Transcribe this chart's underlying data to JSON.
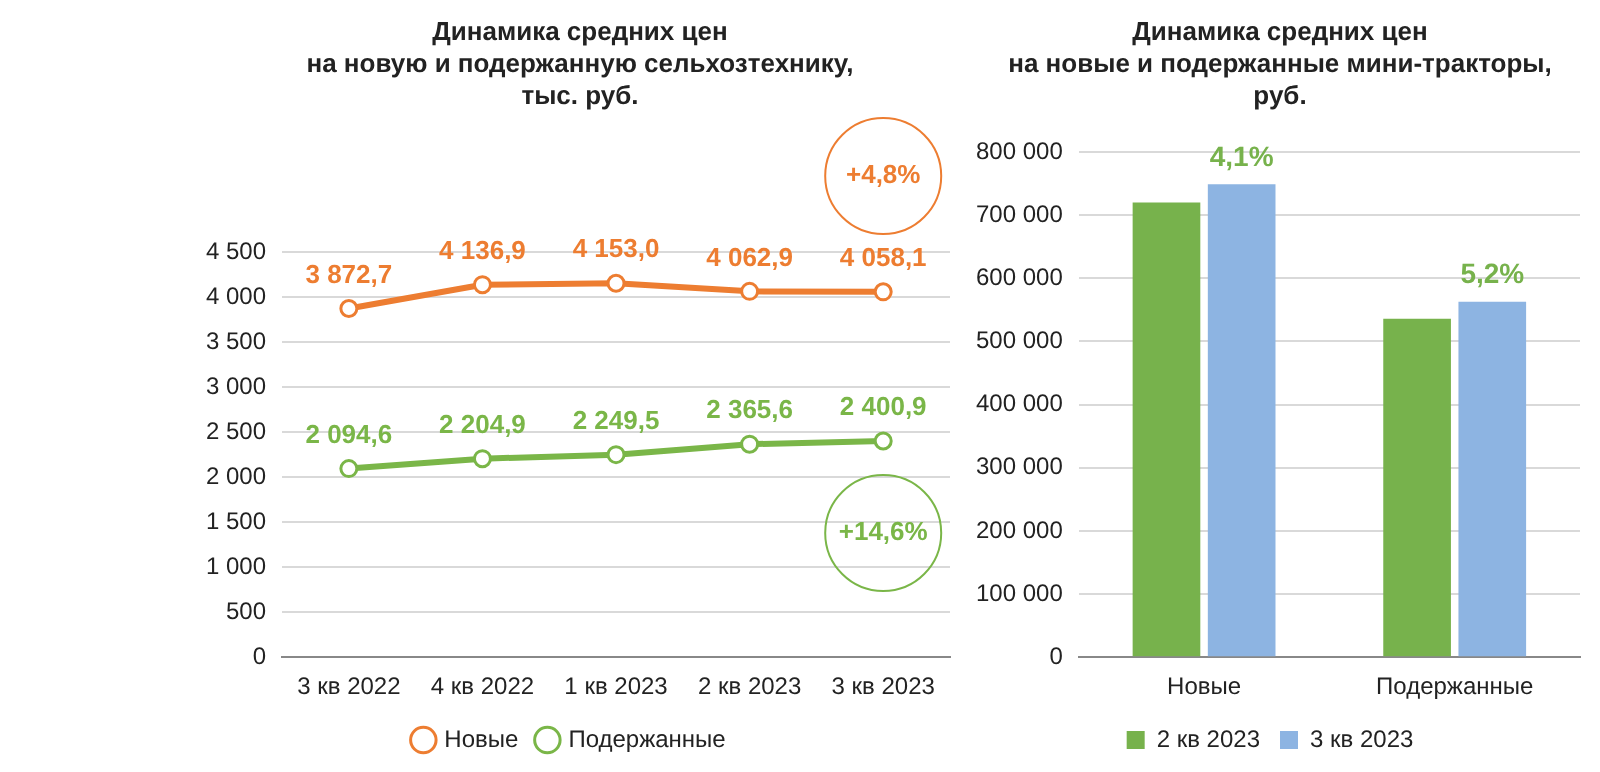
{
  "chart_data": [
    {
      "type": "line",
      "title": "Динамика средних цен\nна новую и подержанную сельхозтехнику,\nтыс. руб.",
      "categories": [
        "3 кв 2022",
        "4 кв 2022",
        "1 кв 2023",
        "2 кв 2023",
        "3 кв 2023"
      ],
      "series": [
        {
          "name": "Новые",
          "color": "#ed7d31",
          "values": [
            3872.7,
            4136.9,
            4153.0,
            4062.9,
            4058.1
          ],
          "value_labels": [
            "3 872,7",
            "4 136,9",
            "4 153,0",
            "4 062,9",
            "4 058,1"
          ]
        },
        {
          "name": "Подержанные",
          "color": "#7ab648",
          "values": [
            2094.6,
            2204.9,
            2249.5,
            2365.6,
            2400.9
          ],
          "value_labels": [
            "2 094,6",
            "2 204,9",
            "2 249,5",
            "2 365,6",
            "2 400,9"
          ]
        }
      ],
      "ylim": [
        0,
        4500
      ],
      "yticks": [
        {
          "value": 0,
          "label": "0"
        },
        {
          "value": 500,
          "label": "500"
        },
        {
          "value": 1000,
          "label": "1 000"
        },
        {
          "value": 1500,
          "label": "1 500"
        },
        {
          "value": 2000,
          "label": "2 000"
        },
        {
          "value": 2500,
          "label": "2 500"
        },
        {
          "value": 3000,
          "label": "3 000"
        },
        {
          "value": 3500,
          "label": "3 500"
        },
        {
          "value": 4000,
          "label": "4 000"
        },
        {
          "value": 4500,
          "label": "4 500"
        }
      ],
      "annotations": [
        "+4,8%",
        "+14,6%"
      ],
      "grid": "y",
      "legend": "bottom",
      "marker": "circle",
      "line_style": "solid"
    },
    {
      "type": "bar",
      "title": "Динамика средних цен\nна новые и подержанные мини-тракторы,\nруб.",
      "categories": [
        "Новые",
        "Подержанные"
      ],
      "series": [
        {
          "name": "2 кв 2023",
          "color": "#77b24c",
          "values": [
            720000,
            536000
          ]
        },
        {
          "name": "3 кв 2023",
          "color": "#8db4e2",
          "values": [
            749000,
            563000
          ]
        }
      ],
      "ylim": [
        0,
        800000
      ],
      "yticks": [
        {
          "value": 0,
          "label": "0"
        },
        {
          "value": 100000,
          "label": "100 000"
        },
        {
          "value": 200000,
          "label": "200 000"
        },
        {
          "value": 300000,
          "label": "300 000"
        },
        {
          "value": 400000,
          "label": "400 000"
        },
        {
          "value": 500000,
          "label": "500 000"
        },
        {
          "value": 600000,
          "label": "600 000"
        },
        {
          "value": 700000,
          "label": "700 000"
        },
        {
          "value": 800000,
          "label": "800 000"
        }
      ],
      "annotations": [
        "4,1%",
        "5,2%"
      ],
      "grid": "y",
      "legend": "bottom"
    }
  ]
}
